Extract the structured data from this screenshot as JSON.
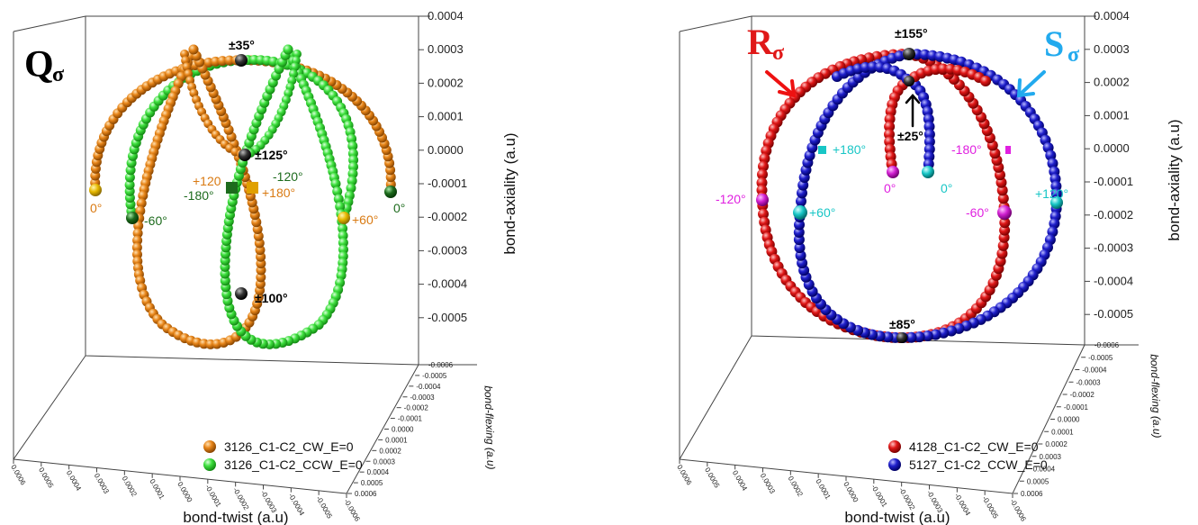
{
  "colors": {
    "orange": "#d97a12",
    "green": "#33dd33",
    "red": "#dd1111",
    "blue": "#1a1ac8",
    "black": "#111111",
    "yellow": "#e6b800",
    "darkgreen": "#1d6b1d",
    "magenta": "#e020e0",
    "cyan": "#18c6c6",
    "lightblue": "#22aaee"
  },
  "chart_data": [
    {
      "type": "scatter",
      "panel_label_main": "Q",
      "panel_label_sub": "σ",
      "xlabel": "bond-twist (a.u)",
      "ylabel": "bond-flexing (a.u)",
      "zlabel": "bond-axiality (a.u)",
      "zlim": [
        -0.0005,
        0.0004
      ],
      "z_ticks": [
        "0.0004",
        "0.0003",
        "0.0002",
        "0.0001",
        "0.0000",
        "-0.0001",
        "-0.0002",
        "-0.0003",
        "-0.0004",
        "-0.0005"
      ],
      "y_ticks": [
        "-0.0006",
        "-0.0005",
        "-0.0004",
        "-0.0003",
        "-0.0002",
        "-0.0001",
        "0.0000",
        "0.0001",
        "0.0002",
        "0.0003",
        "0.0004",
        "0.0005",
        "0.0006"
      ],
      "x_ticks": [
        "0.0006",
        "0.0005",
        "0.0004",
        "0.0003",
        "0.0002",
        "0.0001",
        "0.0000",
        "-0.0001",
        "-0.0002",
        "-0.0003",
        "-0.0004",
        "-0.0005",
        "-0.0006"
      ],
      "series": [
        {
          "name": "3126_C1-C2_CW_E=0",
          "color_key": "orange"
        },
        {
          "name": "3126_C1-C2_CCW_E=0",
          "color_key": "green"
        }
      ],
      "annotations": {
        "black_1": "±35°",
        "black_2": "±125°",
        "black_3": "±100°",
        "orange_1": "0°",
        "orange_2": "+60°",
        "orange_3": "+120",
        "orange_4": "+180°",
        "green_1": "0°",
        "green_2": "-60°",
        "green_3": "-120°",
        "green_4": "-180°"
      }
    },
    {
      "type": "scatter",
      "label_r_main": "R",
      "label_r_sub": "σ",
      "label_s_main": "S",
      "label_s_sub": "σ",
      "xlabel": "bond-twist (a.u)",
      "ylabel": "bond-flexing (a.u)",
      "zlabel": "bond-axiality (a.u)",
      "zlim": [
        -0.0005,
        0.0004
      ],
      "z_ticks": [
        "0.0004",
        "0.0003",
        "0.0002",
        "0.0001",
        "0.0000",
        "-0.0001",
        "-0.0002",
        "-0.0003",
        "-0.0004",
        "-0.0005"
      ],
      "y_ticks": [
        "-0.0006",
        "-0.0005",
        "-0.0004",
        "-0.0003",
        "-0.0002",
        "-0.0001",
        "0.0000",
        "0.0001",
        "0.0002",
        "0.0003",
        "0.0004",
        "0.0005",
        "0.0006"
      ],
      "x_ticks": [
        "0.0006",
        "0.0005",
        "0.0004",
        "0.0003",
        "0.0002",
        "0.0001",
        "0.0000",
        "-0.0001",
        "-0.0002",
        "-0.0003",
        "-0.0004",
        "-0.0005",
        "-0.0006"
      ],
      "series": [
        {
          "name": "4128_C1-C2_CW_E=0",
          "color_key": "red"
        },
        {
          "name": "5127_C1-C2_CCW_E=0",
          "color_key": "blue"
        }
      ],
      "annotations": {
        "black_1": "±155°",
        "black_2": "±25°",
        "black_3": "±85°",
        "magenta_1": "0°",
        "magenta_2": "-120°",
        "magenta_3": "-180°",
        "magenta_4": "-60°",
        "cyan_1": "0°",
        "cyan_2": "+180°",
        "cyan_3": "+60°",
        "cyan_4": "+120°"
      }
    }
  ]
}
